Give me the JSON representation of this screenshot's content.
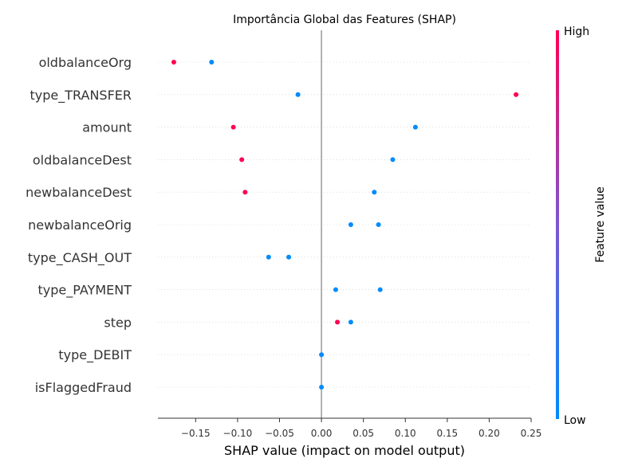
{
  "chart_data": {
    "type": "scatter",
    "title": "Importância Global das Features (SHAP)",
    "xlabel": "SHAP value (impact on model output)",
    "xlim": [
      -0.195,
      0.25
    ],
    "xticks": [
      -0.15,
      -0.1,
      -0.05,
      0.0,
      0.05,
      0.1,
      0.15,
      0.2,
      0.25
    ],
    "xtick_labels": [
      "−0.15",
      "−0.10",
      "−0.05",
      "0.00",
      "0.05",
      "0.10",
      "0.15",
      "0.20",
      "0.25"
    ],
    "features": [
      "oldbalanceOrg",
      "type_TRANSFER",
      "amount",
      "oldbalanceDest",
      "newbalanceDest",
      "newbalanceOrig",
      "type_CASH_OUT",
      "type_PAYMENT",
      "step",
      "type_DEBIT",
      "isFlaggedFraud"
    ],
    "points": [
      {
        "feature": "oldbalanceOrg",
        "shap": -0.176,
        "level": "high"
      },
      {
        "feature": "oldbalanceOrg",
        "shap": -0.131,
        "level": "low"
      },
      {
        "feature": "type_TRANSFER",
        "shap": -0.028,
        "level": "low"
      },
      {
        "feature": "type_TRANSFER",
        "shap": 0.232,
        "level": "high"
      },
      {
        "feature": "amount",
        "shap": -0.105,
        "level": "high"
      },
      {
        "feature": "amount",
        "shap": 0.112,
        "level": "low"
      },
      {
        "feature": "oldbalanceDest",
        "shap": -0.095,
        "level": "high"
      },
      {
        "feature": "oldbalanceDest",
        "shap": 0.085,
        "level": "low"
      },
      {
        "feature": "newbalanceDest",
        "shap": -0.091,
        "level": "high"
      },
      {
        "feature": "newbalanceDest",
        "shap": 0.063,
        "level": "low"
      },
      {
        "feature": "newbalanceOrig",
        "shap": 0.035,
        "level": "low"
      },
      {
        "feature": "newbalanceOrig",
        "shap": 0.068,
        "level": "low"
      },
      {
        "feature": "type_CASH_OUT",
        "shap": -0.063,
        "level": "low"
      },
      {
        "feature": "type_CASH_OUT",
        "shap": -0.039,
        "level": "low"
      },
      {
        "feature": "type_PAYMENT",
        "shap": 0.017,
        "level": "low"
      },
      {
        "feature": "type_PAYMENT",
        "shap": 0.07,
        "level": "low"
      },
      {
        "feature": "step",
        "shap": 0.019,
        "level": "high"
      },
      {
        "feature": "step",
        "shap": 0.035,
        "level": "low"
      },
      {
        "feature": "type_DEBIT",
        "shap": 0.0,
        "level": "low"
      },
      {
        "feature": "isFlaggedFraud",
        "shap": 0.0,
        "level": "low"
      }
    ],
    "colorbar": {
      "label": "Feature value",
      "high_label": "High",
      "low_label": "Low"
    },
    "colors": {
      "high": "#ff0052",
      "low": "#008bfb",
      "zero_line": "#999999",
      "grid": "#cccccc"
    },
    "legend_placement": "right"
  }
}
